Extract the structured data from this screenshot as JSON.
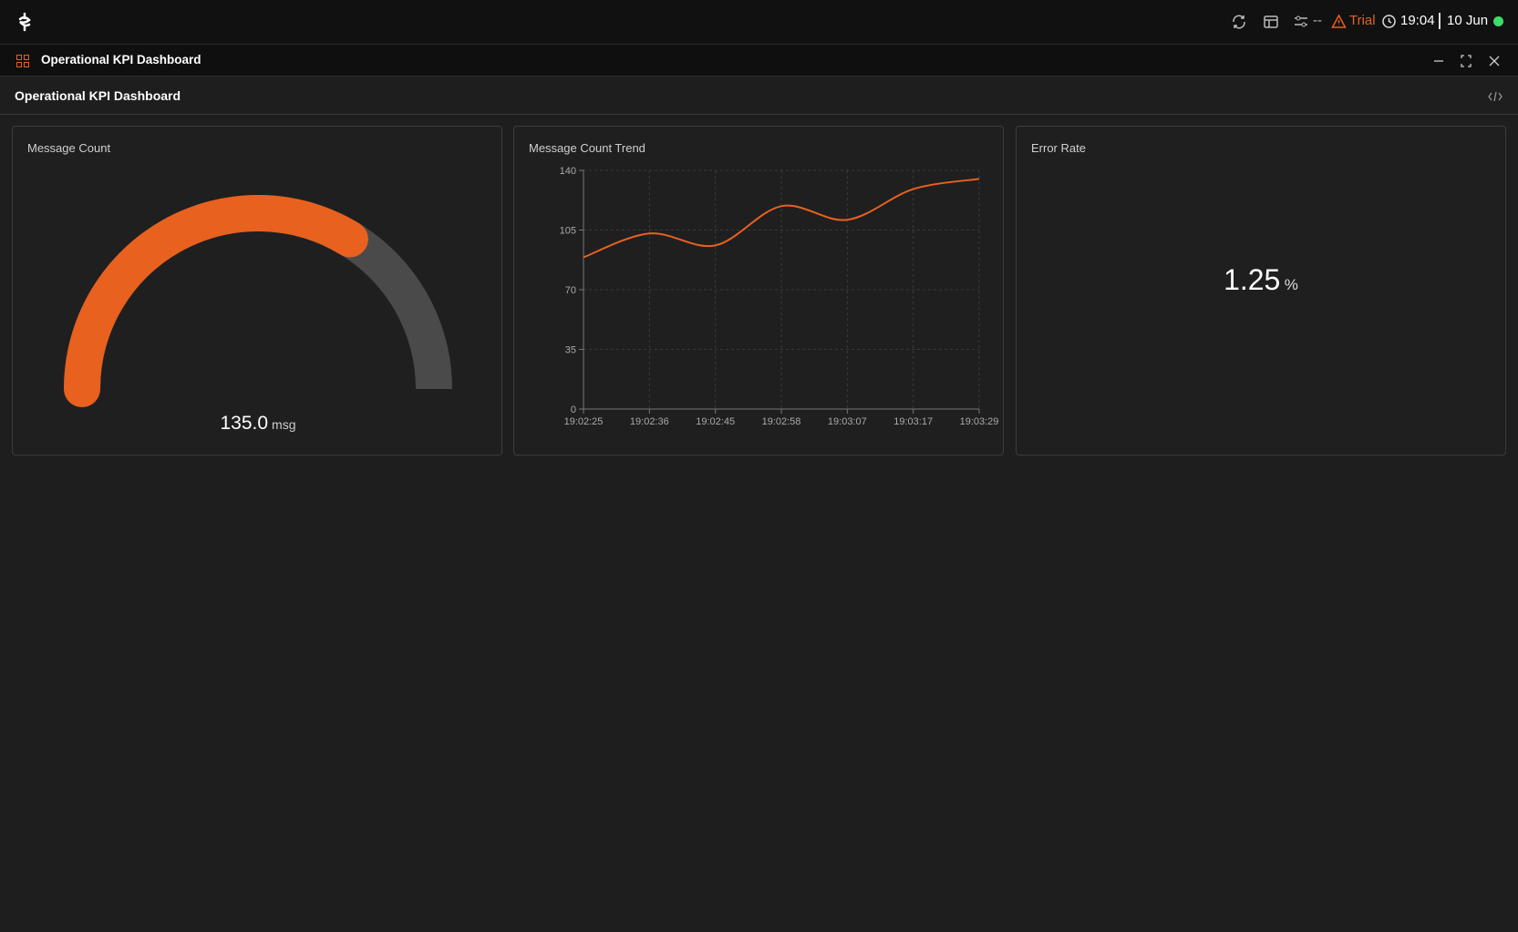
{
  "topbar": {
    "sync": "--",
    "trial": "Trial",
    "time": "19:04",
    "date": "10 Jun"
  },
  "window": {
    "title": "Operational KPI Dashboard"
  },
  "dashboard": {
    "title": "Operational KPI Dashboard",
    "widgets": [
      {
        "type": "gauge",
        "title": "Message Count",
        "value": 135.0,
        "value_label": "135.0",
        "unit": "msg",
        "range": [
          0,
          200
        ],
        "color": "#e8611f",
        "track_color": "#4a4a4a"
      },
      {
        "type": "line",
        "title": "Message Count Trend",
        "categories": [
          "19:02:25",
          "19:02:36",
          "19:02:45",
          "19:02:58",
          "19:03:07",
          "19:03:17",
          "19:03:29"
        ],
        "values": [
          89,
          103,
          96,
          119,
          111,
          129,
          135
        ],
        "ylim": [
          0,
          140
        ],
        "yticks": [
          0,
          35,
          70,
          105,
          140
        ],
        "color": "#e8611f",
        "grid": true
      },
      {
        "type": "stat",
        "title": "Error Rate",
        "value": 1.25,
        "unit": "%"
      }
    ]
  }
}
